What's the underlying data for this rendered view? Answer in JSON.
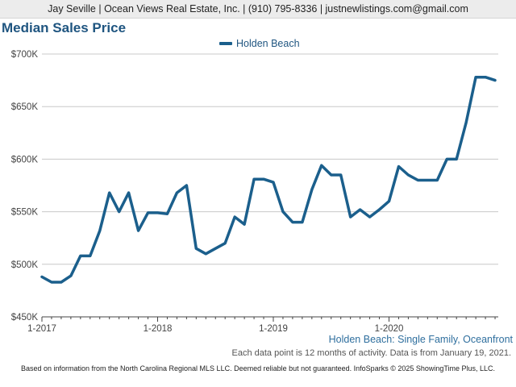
{
  "header": {
    "contact": "Jay Seville | Ocean Views Real Estate, Inc. | (910) 795-8336 | justnewlistings.com@gmail.com"
  },
  "caption": "Holden Beach: Single Family, Oceanfront",
  "note": "Each data point is 12 months of activity. Data is from January 19, 2021.",
  "footer": "Based on information from the North Carolina Regional MLS LLC. Deemed reliable but not guaranteed. InfoSparks © 2025 ShowingTime Plus, LLC.",
  "colors": {
    "series": "#1b5f8c",
    "title": "#1f5580",
    "grid": "#c8c8c8"
  },
  "chart_data": {
    "type": "line",
    "title": "Median Sales Price",
    "xlabel": "",
    "ylabel": "",
    "x_tick_labels": [
      "1-2017",
      "1-2018",
      "1-2019",
      "1-2020"
    ],
    "y_tick_labels": [
      "$450K",
      "$500K",
      "$550K",
      "$600K",
      "$650K",
      "$700K"
    ],
    "ylim": [
      450000,
      700000
    ],
    "grid": "horizontal",
    "legend_position": "top-center",
    "x": [
      "2017-01",
      "2017-02",
      "2017-03",
      "2017-04",
      "2017-05",
      "2017-06",
      "2017-07",
      "2017-08",
      "2017-09",
      "2017-10",
      "2017-11",
      "2017-12",
      "2018-01",
      "2018-02",
      "2018-03",
      "2018-04",
      "2018-05",
      "2018-06",
      "2018-07",
      "2018-08",
      "2018-09",
      "2018-10",
      "2018-11",
      "2018-12",
      "2019-01",
      "2019-02",
      "2019-03",
      "2019-04",
      "2019-05",
      "2019-06",
      "2019-07",
      "2019-08",
      "2019-09",
      "2019-10",
      "2019-11",
      "2019-12",
      "2020-01",
      "2020-02",
      "2020-03",
      "2020-04",
      "2020-05",
      "2020-06",
      "2020-07",
      "2020-08",
      "2020-09",
      "2020-10",
      "2020-11",
      "2020-12"
    ],
    "series": [
      {
        "name": "Holden Beach",
        "values": [
          488000,
          483000,
          483000,
          489000,
          508000,
          508000,
          532000,
          568000,
          550000,
          568000,
          532000,
          549000,
          549000,
          548000,
          568000,
          575000,
          515000,
          510000,
          515000,
          520000,
          545000,
          538000,
          581000,
          581000,
          578000,
          550000,
          540000,
          540000,
          571000,
          594000,
          585000,
          585000,
          545000,
          552000,
          545000,
          552000,
          560000,
          593000,
          585000,
          580000,
          580000,
          580000,
          600000,
          600000,
          635000,
          678000,
          678000,
          675000
        ]
      }
    ]
  }
}
